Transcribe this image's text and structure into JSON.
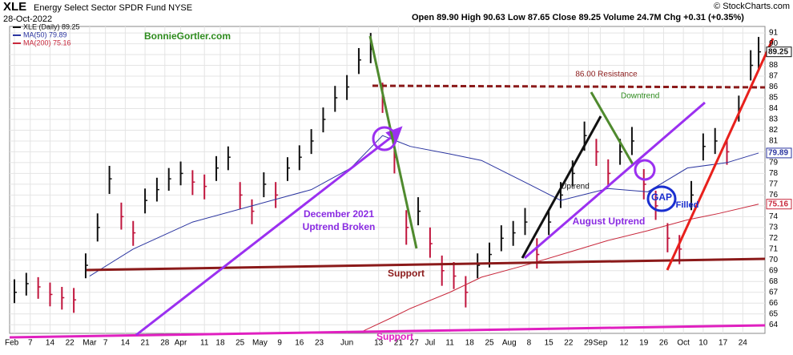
{
  "chart_data": {
    "type": "ohlc",
    "title": "XLE",
    "subtitle": "Energy Select Sector SPDR Fund NYSE",
    "date": "28-Oct-2022",
    "info": "Open 89.90  High 90.63  Low 87.65  Close 89.25  Volume 24.7M  Chg +0.31 (+0.35%)",
    "credit": "© StockCharts.com",
    "xlim": [
      0,
      189
    ],
    "xticks": [
      {
        "value": 0,
        "label": "Feb"
      },
      {
        "value": 4,
        "label": "7"
      },
      {
        "value": 9,
        "label": "14"
      },
      {
        "value": 14,
        "label": "22"
      },
      {
        "value": 19,
        "label": "Mar"
      },
      {
        "value": 23,
        "label": "7"
      },
      {
        "value": 28,
        "label": "14"
      },
      {
        "value": 33,
        "label": "21"
      },
      {
        "value": 38,
        "label": "28"
      },
      {
        "value": 42,
        "label": "Apr"
      },
      {
        "value": 48,
        "label": "11"
      },
      {
        "value": 52,
        "label": "18"
      },
      {
        "value": 57,
        "label": "25"
      },
      {
        "value": 62,
        "label": "May"
      },
      {
        "value": 67,
        "label": "9"
      },
      {
        "value": 72,
        "label": "16"
      },
      {
        "value": 77,
        "label": "23"
      },
      {
        "value": 84,
        "label": "Jun"
      },
      {
        "value": 92,
        "label": "13"
      },
      {
        "value": 97,
        "label": "21"
      },
      {
        "value": 101,
        "label": "27"
      },
      {
        "value": 105,
        "label": "Jul"
      },
      {
        "value": 110,
        "label": "11"
      },
      {
        "value": 115,
        "label": "18"
      },
      {
        "value": 120,
        "label": "25"
      },
      {
        "value": 125,
        "label": "Aug"
      },
      {
        "value": 130,
        "label": "8"
      },
      {
        "value": 135,
        "label": "15"
      },
      {
        "value": 140,
        "label": "22"
      },
      {
        "value": 145,
        "label": "29"
      },
      {
        "value": 148,
        "label": "Sep"
      },
      {
        "value": 154,
        "label": "12"
      },
      {
        "value": 159,
        "label": "19"
      },
      {
        "value": 164,
        "label": "26"
      },
      {
        "value": 169,
        "label": "Oct"
      },
      {
        "value": 174,
        "label": "10"
      },
      {
        "value": 179,
        "label": "17"
      },
      {
        "value": 184,
        "label": "24"
      }
    ],
    "ylim": [
      63.2,
      91.6
    ],
    "yticks": [
      64,
      65,
      66,
      67,
      68,
      69,
      70,
      71,
      72,
      73,
      74,
      75,
      76,
      77,
      78,
      79,
      80,
      81,
      82,
      83,
      84,
      85,
      86,
      87,
      88,
      89,
      90,
      91
    ],
    "grid": true,
    "up_color": "#111111",
    "down_color": "#c0143c",
    "series": [
      {
        "name": "XLE (Daily) 89.25",
        "color": "#111111",
        "x": [
          0,
          3,
          6,
          9,
          12,
          15,
          18,
          21,
          24,
          27,
          30,
          33,
          36,
          39,
          42,
          45,
          48,
          51,
          54,
          57,
          60,
          63,
          66,
          69,
          72,
          75,
          78,
          81,
          84,
          87,
          90,
          93,
          96,
          99,
          102,
          105,
          108,
          111,
          114,
          117,
          120,
          123,
          126,
          129,
          132,
          135,
          138,
          141,
          144,
          147,
          150,
          153,
          156,
          159,
          162,
          165,
          168,
          171,
          174,
          177,
          180,
          183,
          186,
          188
        ],
        "high": [
          68.2,
          68.8,
          68.4,
          67.9,
          67.5,
          67.4,
          70.6,
          74.3,
          78.7,
          75.3,
          73.6,
          76.6,
          77.6,
          78.5,
          79.1,
          78.3,
          77.9,
          79.6,
          80.5,
          77.2,
          75.6,
          78.1,
          77.2,
          79.5,
          80.6,
          82.1,
          84.1,
          86.1,
          87.1,
          89.6,
          91.0,
          86.4,
          81.0,
          74.6,
          75.8,
          73.0,
          70.4,
          69.8,
          68.5,
          70.6,
          71.6,
          73.2,
          73.6,
          74.8,
          72.0,
          74.6,
          77.2,
          79.2,
          82.8,
          81.2,
          79.3,
          81.2,
          82.3,
          78.4,
          76.4,
          73.4,
          72.3,
          77.3,
          81.7,
          82.2,
          81.2,
          85.2,
          89.4,
          90.63
        ],
        "low": [
          66.0,
          66.7,
          66.4,
          65.7,
          65.4,
          65.1,
          68.3,
          71.7,
          76.1,
          72.8,
          71.3,
          74.3,
          75.4,
          76.4,
          76.9,
          76.0,
          75.6,
          77.3,
          78.3,
          74.7,
          73.3,
          75.8,
          74.8,
          77.3,
          78.3,
          79.8,
          81.8,
          83.7,
          84.8,
          87.2,
          88.2,
          83.6,
          78.0,
          71.4,
          73.2,
          70.2,
          67.6,
          67.3,
          65.6,
          68.3,
          69.3,
          70.8,
          71.3,
          72.3,
          69.2,
          72.3,
          74.8,
          76.8,
          80.1,
          78.7,
          76.7,
          78.8,
          79.7,
          75.6,
          73.7,
          70.7,
          69.6,
          74.6,
          79.2,
          79.8,
          78.8,
          82.8,
          86.6,
          87.65
        ],
        "close": [
          67,
          67.8,
          67.5,
          66.8,
          66.5,
          66.3,
          69.5,
          73,
          77.5,
          74,
          72.5,
          75.5,
          76.5,
          77.5,
          78,
          77.2,
          76.8,
          78.5,
          79.5,
          76,
          74.5,
          77,
          76,
          78.5,
          79.5,
          81,
          83,
          85,
          86,
          88.5,
          89.5,
          85,
          79.5,
          73,
          74.5,
          71.5,
          69,
          68.5,
          67,
          69.5,
          70.5,
          72,
          72.5,
          73.5,
          70.5,
          73.5,
          76,
          78,
          81.5,
          80,
          78,
          80,
          81,
          77,
          75,
          72,
          71,
          76,
          80.5,
          81,
          80,
          84,
          88,
          89.25
        ]
      },
      {
        "name": "MA(50) 79.89",
        "color": "#2b35a0",
        "x": [
          19,
          30,
          45,
          60,
          75,
          85,
          93,
          100,
          110,
          118,
          130,
          138,
          150,
          160,
          170,
          180,
          188
        ],
        "values": [
          68.5,
          71,
          73.5,
          75,
          76.5,
          78.5,
          81.5,
          80.5,
          79.8,
          79.2,
          77,
          75.5,
          76.6,
          76.3,
          78.5,
          79,
          79.89
        ]
      },
      {
        "name": "MA(200) 75.16",
        "color": "#c8283c",
        "x": [
          88,
          95,
          100,
          110,
          118,
          130,
          140,
          150,
          160,
          170,
          178,
          188
        ],
        "values": [
          63.4,
          64.6,
          65.5,
          67,
          68.4,
          69.6,
          70.7,
          71.8,
          72.7,
          73.7,
          74.3,
          75.16
        ]
      }
    ],
    "annotations": [
      {
        "text": "BonnieGortler.com",
        "color": "#2e8b1e"
      },
      {
        "text": "86.00 Resistance",
        "color": "#8b1a1a"
      },
      {
        "text": "Downtrend",
        "color": "#2e8b1e"
      },
      {
        "text": "December 2021",
        "color": "#8a2be2"
      },
      {
        "text": "Uptrend Broken",
        "color": "#8a2be2"
      },
      {
        "text": "Support",
        "color": "#8b1a1a"
      },
      {
        "text": "Support",
        "color": "#e020c0"
      },
      {
        "text": "Uptrend",
        "color": "#111111"
      },
      {
        "text": "August Uptrend",
        "color": "#8a2be2"
      },
      {
        "text": "GAP",
        "color": "#1a2fd0"
      },
      {
        "text": "Filled",
        "color": "#1a2fd0"
      }
    ]
  }
}
